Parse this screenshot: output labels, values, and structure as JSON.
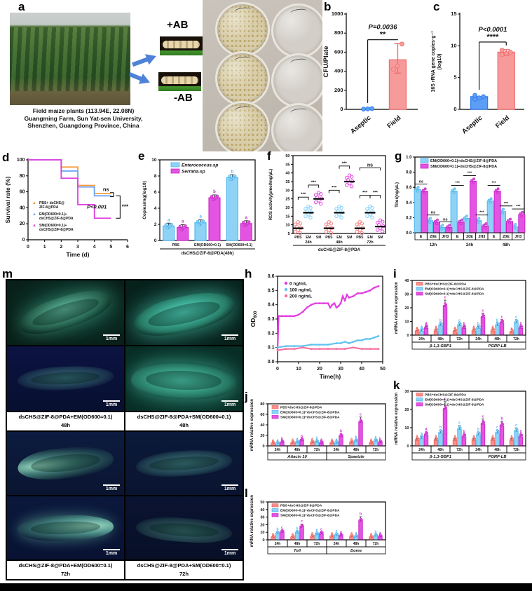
{
  "panels": {
    "a": "a",
    "b": "b",
    "c": "c",
    "d": "d",
    "e": "e",
    "f": "f",
    "g": "g",
    "h": "h",
    "i": "i",
    "j": "j",
    "k": "k",
    "l": "l",
    "m": "m"
  },
  "panel_a": {
    "plus_label": "+AB",
    "minus_label": "-AB",
    "caption_lines": [
      "Field maize plants (113.94E, 22.08N)",
      "Guangming Farm, Sun Yat-sen University,",
      "Shenzhen, Guangdong Province, China"
    ]
  },
  "panel_m": {
    "scalebar": "1mm",
    "captions": [
      {
        "line1": "dsCHS@ZIF-8@PDA+EM(OD600=0.1)",
        "line2": "48h"
      },
      {
        "line1": "dsCHS@ZIF-8@PDA+SM(OD600=0.1)",
        "line2": "48h"
      },
      {
        "line1": "dsCHS@ZIF-8@PDA+EM(OD600=0.1)",
        "line2": "72h"
      },
      {
        "line1": "dsCHS@ZIF-8@PDA+SM(OD600=0.1)",
        "line2": "72h"
      }
    ]
  },
  "chart_data": [
    {
      "id": "b",
      "type": "bar",
      "ylabel": "CFU/Plate",
      "categories": [
        "Aseptic",
        "Field"
      ],
      "values": [
        5,
        520
      ],
      "ylim": [
        0,
        1000
      ],
      "yticks": [
        0,
        200,
        400,
        600,
        800,
        1000
      ],
      "ytick_labels": [
        "0",
        "200",
        "400",
        "600",
        "800",
        "1000"
      ],
      "points": [
        [
          3,
          5,
          8
        ],
        [
          420,
          455,
          685
        ]
      ],
      "error": {
        "lo": 380,
        "hi": 690
      },
      "bracket_y": 730,
      "p_text": "P=0.0036",
      "stars": "**",
      "colors": [
        "#5c9df6",
        "#f79a9a"
      ],
      "strokes": [
        "#2f7bed",
        "#ef6f6f"
      ]
    },
    {
      "id": "c",
      "type": "bar",
      "ylabel": "16S rRNA gene copies·g⁻¹",
      "ylabel2": "(log10)",
      "categories": [
        "Aseptic",
        "Field"
      ],
      "values": [
        2.0,
        9.0
      ],
      "ylim": [
        0,
        15
      ],
      "yticks": [
        0,
        5,
        10,
        15
      ],
      "ytick_labels": [
        "0",
        "5",
        "10",
        "15"
      ],
      "points": [
        [
          1.6,
          1.8,
          2.0,
          2.2
        ],
        [
          8.6,
          8.8,
          9.0,
          9.3
        ]
      ],
      "error": {
        "lo": 8.5,
        "hi": 9.4
      },
      "bracket_y": 10.6,
      "p_text": "P<0.0001",
      "stars": "****",
      "colors": [
        "#5c9df6",
        "#f79a9a"
      ],
      "strokes": [
        "#2f7bed",
        "#ef6f6f"
      ]
    },
    {
      "id": "d",
      "type": "survival",
      "xlabel": "Time (d)",
      "ylabel": "Survival rate (%)",
      "xlim": [
        0,
        6
      ],
      "ylim": [
        0,
        100
      ],
      "xticks": [
        0,
        1,
        2,
        3,
        4,
        5,
        6
      ],
      "yticks": [
        0,
        20,
        40,
        60,
        80,
        100
      ],
      "ytick_labels": [
        "0",
        "20",
        "40",
        "60",
        "80",
        "100"
      ],
      "series": [
        {
          "name": "PBS+dsCHS@ZIF-8@PDA",
          "color": "#f59a38",
          "x": [
            0,
            2,
            2,
            3,
            3,
            4,
            4,
            5
          ],
          "y": [
            100,
            100,
            91,
            91,
            68,
            68,
            58,
            58
          ]
        },
        {
          "name": "EM(OD600=0.1)+dsCHS@ZIF-8@PDA",
          "color": "#6fa8f5",
          "x": [
            0,
            2,
            2,
            3,
            3,
            4,
            4,
            5
          ],
          "y": [
            100,
            100,
            86,
            86,
            66,
            66,
            55,
            55
          ]
        },
        {
          "name": "SM(OD600=0.1)+dsCHS@ZIF-8@PDA",
          "color": "#e23fe0",
          "x": [
            0,
            2,
            2,
            3,
            3,
            4,
            4,
            5
          ],
          "y": [
            100,
            100,
            77,
            77,
            44,
            44,
            27,
            27
          ]
        }
      ],
      "legend": [
        [
          "PBS+ dsCHS@",
          "ZIF-8@PDA"
        ],
        [
          "EM(OD600=0.1)+",
          "dsCHS@ZIF-8@PDA"
        ],
        [
          "SM(OD600=0.1)+",
          "dsCHS@ZIF-8@PDA"
        ]
      ],
      "ann_ns": "ns",
      "ann_p": "P<0.001",
      "ann_stars": "***"
    },
    {
      "id": "e",
      "type": "groupbar2",
      "ylabel": "Copies/mg(log10)",
      "ylim": [
        0,
        10
      ],
      "yticks": [
        0,
        2,
        4,
        6,
        8,
        10
      ],
      "ytick_labels": [
        "0",
        "2",
        "4",
        "6",
        "8",
        "10"
      ],
      "groups": [
        "PBS",
        "EM(OD600=0.1)",
        "SM(OD600=0.1)"
      ],
      "axis_label": "dsCHS@ZIF-8@PDA(48h)",
      "series": [
        {
          "name": "Enterococcus.sp",
          "color": "#8ed3f6",
          "stroke": "#49b4ef",
          "values": [
            1.8,
            2.2,
            7.8
          ],
          "letters": [
            "a",
            "a",
            "b"
          ]
        },
        {
          "name": "Serratia.sp",
          "color": "#e454e2",
          "stroke": "#c926c7",
          "values": [
            1.6,
            5.3,
            2.1
          ],
          "letters": [
            "a",
            "b",
            "a"
          ]
        }
      ]
    },
    {
      "id": "f",
      "type": "dotplot",
      "ylabel": "ROS activity(μmol/mg/μL)",
      "ylim": [
        5,
        50
      ],
      "yticks": [
        5,
        10,
        15,
        20,
        25,
        30,
        35,
        40,
        45,
        50
      ],
      "ytick_labels": [
        "5",
        "10",
        "15",
        "20",
        "25",
        "30",
        "35",
        "40",
        "45",
        "50"
      ],
      "group_labels": [
        "PBS",
        "EM",
        "SM",
        "PBS",
        "EM",
        "SM",
        "PBS",
        "EM",
        "SM"
      ],
      "time_labels": [
        "24h",
        "48h",
        "72h"
      ],
      "axis_label": "dsCHS@ZIF-8@PDA",
      "medians": [
        8,
        17,
        25,
        8,
        17,
        35,
        8,
        17,
        9
      ],
      "colors": [
        "#f58c8c",
        "#8ed3f6",
        "#e454e2",
        "#f58c8c",
        "#8ed3f6",
        "#e454e2",
        "#f58c8c",
        "#8ed3f6",
        "#e454e2"
      ],
      "brackets": [
        {
          "a": 0,
          "b": 1,
          "y": 26,
          "label": "***"
        },
        {
          "a": 1,
          "b": 2,
          "y": 33,
          "label": "***"
        },
        {
          "a": 3,
          "b": 4,
          "y": 30,
          "label": "***"
        },
        {
          "a": 4,
          "b": 5,
          "y": 44,
          "label": "***"
        },
        {
          "a": 6,
          "b": 7,
          "y": 27,
          "label": "***"
        },
        {
          "a": 7,
          "b": 8,
          "y": 27,
          "label": "***"
        },
        {
          "a": 6,
          "b": 8,
          "y": 43,
          "label": "ns"
        }
      ]
    },
    {
      "id": "g",
      "type": "hormonebar",
      "ylabel": "Titer(ng/μL)",
      "ylim": [
        0,
        1
      ],
      "yticks": [
        0,
        0.2,
        0.4,
        0.6,
        0.8,
        1
      ],
      "ytick_labels": [
        "0.0",
        "0.2",
        "0.4",
        "0.6",
        "0.8",
        "1.0"
      ],
      "legend": [
        "EM(OD600=0.1)+dsCHS@ZIF-8@PDA",
        "SM(OD600=0.1)+dsCHS@ZIF-8@PDA"
      ],
      "colors": [
        "#8ed3f6",
        "#e454e2"
      ],
      "strokes": [
        "#49b4ef",
        "#c926c7"
      ],
      "hormones": [
        "E",
        "20E",
        "JH3"
      ],
      "times": [
        "12h",
        "24h",
        "48h"
      ],
      "series": [
        {
          "name": "EM",
          "values": [
            0.57,
            0.16,
            0.07,
            0.55,
            0.19,
            0.16,
            0.42,
            0.28,
            0.08
          ]
        },
        {
          "name": "SM",
          "values": [
            0.55,
            0.14,
            0.07,
            0.14,
            0.68,
            0.09,
            0.55,
            0.15,
            0.24
          ]
        }
      ],
      "sig": [
        "ns",
        "ns",
        "ns",
        "***",
        "***",
        "***",
        "***",
        "***",
        "***"
      ]
    },
    {
      "id": "h",
      "type": "line",
      "xlabel": "Time(h)",
      "ylabel": "OD",
      "ylabel_sub": "600",
      "xlim": [
        0,
        50
      ],
      "ylim": [
        0,
        0.6
      ],
      "xticks": [
        0,
        10,
        20,
        30,
        40,
        50
      ],
      "yticks": [
        0,
        0.1,
        0.2,
        0.3,
        0.4,
        0.5,
        0.6
      ],
      "ytick_labels": [
        "0.0",
        "0.1",
        "0.2",
        "0.3",
        "0.4",
        "0.5",
        "0.6"
      ],
      "series": [
        {
          "name": "0 ng/mL",
          "color": "#e23fe0",
          "x": [
            0,
            0.5,
            2,
            4,
            6,
            8,
            10,
            12,
            14,
            16,
            18,
            20,
            22,
            24,
            25,
            26,
            27,
            28,
            29,
            30,
            31,
            32,
            33,
            34,
            36,
            38,
            40,
            42,
            44,
            46,
            48
          ],
          "y": [
            0.08,
            0.32,
            0.32,
            0.32,
            0.32,
            0.32,
            0.33,
            0.35,
            0.38,
            0.4,
            0.41,
            0.41,
            0.41,
            0.41,
            0.38,
            0.4,
            0.41,
            0.38,
            0.39,
            0.41,
            0.46,
            0.43,
            0.47,
            0.45,
            0.46,
            0.48,
            0.48,
            0.49,
            0.5,
            0.52,
            0.53
          ]
        },
        {
          "name": "100 ng/mL",
          "color": "#62c4f0",
          "x": [
            0,
            4,
            8,
            12,
            16,
            20,
            24,
            28,
            30,
            32,
            34,
            36,
            38,
            40,
            42,
            44,
            46,
            48
          ],
          "y": [
            0.1,
            0.11,
            0.11,
            0.11,
            0.12,
            0.12,
            0.12,
            0.13,
            0.13,
            0.14,
            0.13,
            0.14,
            0.15,
            0.15,
            0.16,
            0.16,
            0.17,
            0.18
          ]
        },
        {
          "name": "200 ng/mL",
          "color": "#f76ea0",
          "x": [
            0,
            4,
            8,
            12,
            16,
            20,
            24,
            28,
            32,
            36,
            40,
            44,
            48
          ],
          "y": [
            0.08,
            0.09,
            0.09,
            0.1,
            0.09,
            0.09,
            0.09,
            0.09,
            0.09,
            0.1,
            0.09,
            0.09,
            0.09
          ]
        }
      ]
    },
    {
      "id": "i",
      "type": "genebar",
      "ylabel": "mRNA relative expression",
      "ylim": [
        0,
        40
      ],
      "yticks": [
        0,
        10,
        20,
        30,
        40
      ],
      "ytick_labels": [
        "0",
        "10",
        "20",
        "30",
        "40"
      ],
      "legend": [
        "PBS+dsCHS@ZIF-8@PDA",
        "EM(OD600=0.1)+dsCHS@ZIF-8@PDA",
        "SM(OD600=0.1)+dsCHS@ZIF-8@PDA"
      ],
      "colors": [
        "#f88f8f",
        "#8ed3f6",
        "#e454e2"
      ],
      "strokes": [
        "#f0635c",
        "#49b4ef",
        "#c926c7"
      ],
      "genes": [
        "β-1,3-GBP1",
        "PGRP-LB"
      ],
      "times": [
        "24h",
        "48h",
        "72h"
      ],
      "values": [
        [
          [
            2.5,
            3,
            5
          ],
          [
            3,
            7,
            21
          ],
          [
            2.5,
            7,
            5
          ]
        ],
        [
          [
            3,
            5,
            13
          ],
          [
            3,
            7,
            9
          ],
          [
            2,
            9,
            5
          ]
        ]
      ],
      "letters": [
        [
          [
            "a",
            "a",
            "A"
          ],
          [
            "a",
            "b",
            "c"
          ],
          [
            "a",
            "c",
            "b"
          ]
        ],
        [
          [
            "a",
            "b",
            "c"
          ],
          [
            "a",
            "b",
            "c"
          ],
          [
            "a",
            "c",
            "b"
          ]
        ]
      ]
    },
    {
      "id": "j",
      "type": "genebar",
      "ylabel": "mRNA relative expression",
      "ylim": [
        0,
        80
      ],
      "yticks": [
        0,
        20,
        40,
        60,
        80
      ],
      "ytick_labels": [
        "0",
        "20",
        "40",
        "60",
        "80"
      ],
      "legend": [
        "PBS+dsCHS@ZIF-8@PDA",
        "EM(OD600=0.1)+dsCHS@ZIF-8@PDA",
        "SM(OD600=0.1)+dsCHS@ZIF-8@PDA"
      ],
      "colors": [
        "#f88f8f",
        "#8ed3f6",
        "#e454e2"
      ],
      "strokes": [
        "#f0635c",
        "#49b4ef",
        "#c926c7"
      ],
      "genes": [
        "Attacin 10",
        "Spaetzle"
      ],
      "times": [
        "24h",
        "48h",
        "72h"
      ],
      "values": [
        [
          [
            4,
            4,
            6
          ],
          [
            5,
            6,
            10
          ],
          [
            6,
            7,
            5
          ]
        ],
        [
          [
            5,
            5,
            18
          ],
          [
            6,
            9,
            45
          ],
          [
            5,
            9,
            6
          ]
        ]
      ],
      "letters": [
        [
          [
            "a",
            "a",
            "b"
          ],
          [
            "a",
            "a",
            "b"
          ],
          [
            "a",
            "b",
            "a"
          ]
        ],
        [
          [
            "a",
            "a",
            "b"
          ],
          [
            "a",
            "b",
            "c"
          ],
          [
            "a",
            "c",
            "b"
          ]
        ]
      ]
    },
    {
      "id": "k",
      "type": "genebar",
      "ylabel": "mRNA relative expression",
      "ylim": [
        0,
        30
      ],
      "yticks": [
        0,
        10,
        20,
        30
      ],
      "ytick_labels": [
        "0",
        "10",
        "20",
        "30"
      ],
      "legend": [
        "PBS+dsCHS@ZIF-8@PDA",
        "EM(OD600=0.1)+dsCHS@ZIF-8@PDA",
        "SM(OD600=0.1)+dsCHS@ZIF-8@PDA"
      ],
      "colors": [
        "#f88f8f",
        "#8ed3f6",
        "#e454e2"
      ],
      "strokes": [
        "#f0635c",
        "#49b4ef",
        "#c926c7"
      ],
      "genes": [
        "β-1,3-GBP1",
        "PGRP-LB"
      ],
      "times": [
        "24h",
        "48h",
        "72h"
      ],
      "values": [
        [
          [
            3,
            4,
            6
          ],
          [
            3,
            7,
            20
          ],
          [
            3,
            9,
            5
          ]
        ],
        [
          [
            3,
            6,
            12
          ],
          [
            3,
            7,
            11
          ],
          [
            3,
            8,
            5
          ]
        ]
      ],
      "letters": [
        [
          [
            "a",
            "a",
            "A"
          ],
          [
            "a",
            "b",
            "c"
          ],
          [
            "a",
            "c",
            "b"
          ]
        ],
        [
          [
            "a",
            "b",
            "c"
          ],
          [
            "a",
            "c",
            "b"
          ],
          [
            "a",
            "c",
            "b"
          ]
        ]
      ]
    },
    {
      "id": "l",
      "type": "genebar",
      "ylabel": "mRNA relative expression",
      "ylim": [
        0,
        50
      ],
      "yticks": [
        0,
        10,
        20,
        30,
        40,
        50
      ],
      "ytick_labels": [
        "0",
        "10",
        "20",
        "30",
        "40",
        "50"
      ],
      "legend": [
        "PBS+dsCHS@ZIF-8@PDA",
        "EM(OD600=0.1)+dsCHS@ZIF-8@PDA",
        "SM(OD600=0.1)+dsCHS@ZIF-8@PDA"
      ],
      "colors": [
        "#f88f8f",
        "#8ed3f6",
        "#e454e2"
      ],
      "strokes": [
        "#f0635c",
        "#49b4ef",
        "#c926c7"
      ],
      "genes": [
        "Toll",
        "Dome"
      ],
      "times": [
        "24h",
        "48h",
        "72h"
      ],
      "values": [
        [
          [
            3,
            8,
            10
          ],
          [
            3,
            9,
            17
          ],
          [
            4,
            7,
            8
          ]
        ],
        [
          [
            4,
            6,
            5
          ],
          [
            4,
            4,
            25
          ],
          [
            3,
            5,
            4
          ]
        ]
      ],
      "letters": [
        [
          [
            "a",
            "b",
            "c"
          ],
          [
            "a",
            "b",
            "c"
          ],
          [
            "a",
            "b",
            "c"
          ]
        ],
        [
          [
            "a",
            "c",
            "a"
          ],
          [
            "a",
            "a",
            "b"
          ],
          [
            "a",
            "b",
            "a"
          ]
        ]
      ]
    }
  ]
}
